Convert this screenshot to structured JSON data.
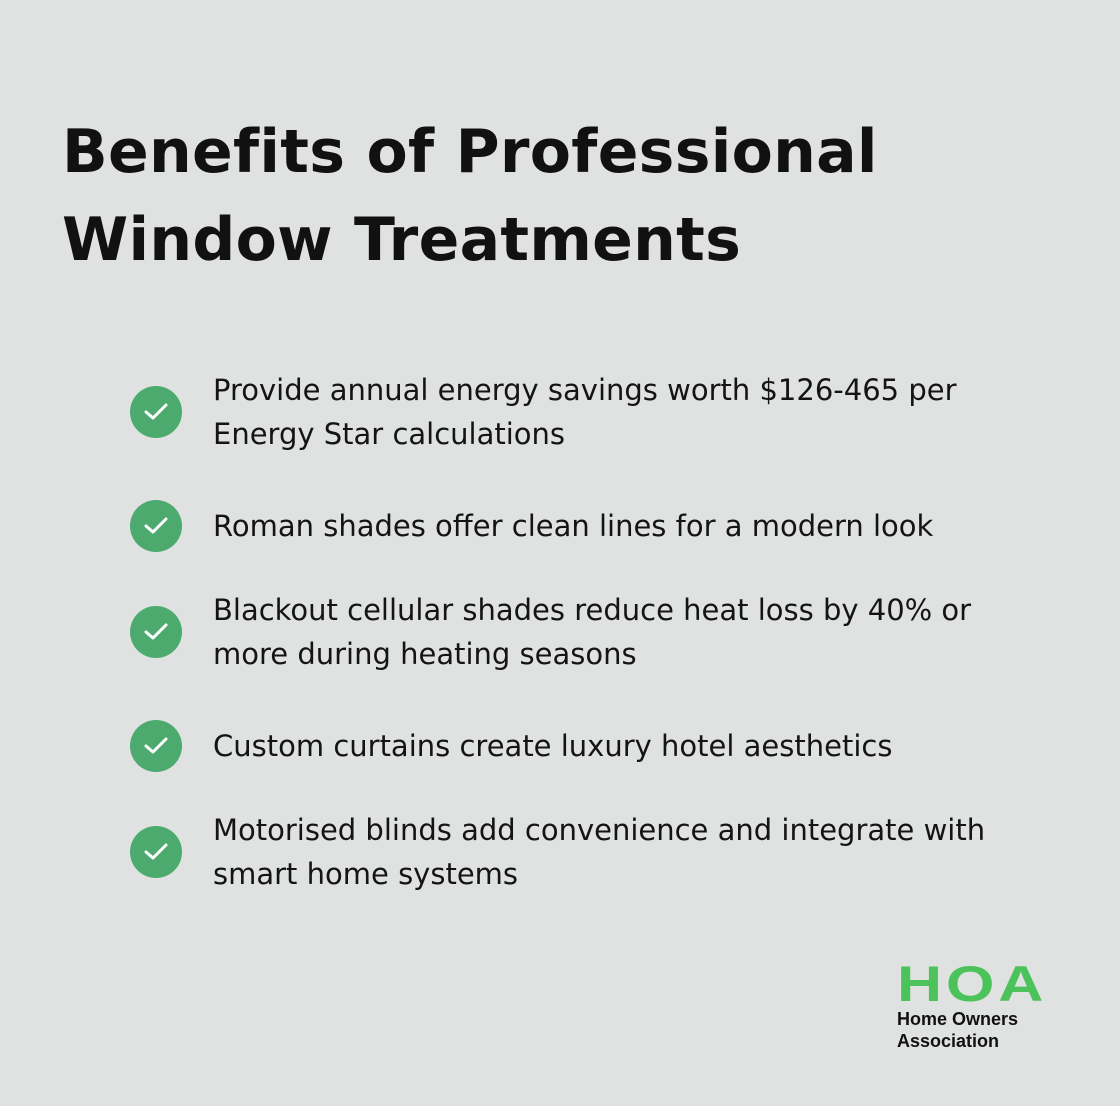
{
  "title": {
    "line1": "Benefits of Professional",
    "line2": "Window Treatments"
  },
  "items": [
    {
      "text": "Provide annual energy savings worth $126-465 per Energy Star calculations",
      "icon": "check-icon"
    },
    {
      "text": "Roman shades offer clean lines for a modern look",
      "icon": "check-icon"
    },
    {
      "text": "Blackout cellular shades reduce heat loss by 40% or more during heating seasons",
      "icon": "check-icon"
    },
    {
      "text": "Custom curtains create luxury hotel aesthetics",
      "icon": "check-icon"
    },
    {
      "text": "Motorised blinds add convenience and integrate with smart home systems",
      "icon": "check-icon"
    }
  ],
  "logo": {
    "mark": "HOA",
    "line1": "Home Owners",
    "line2": "Association"
  },
  "colors": {
    "background": "#dfe2e0",
    "check": "#4daa6e",
    "logo_green": "#4cc35a"
  }
}
